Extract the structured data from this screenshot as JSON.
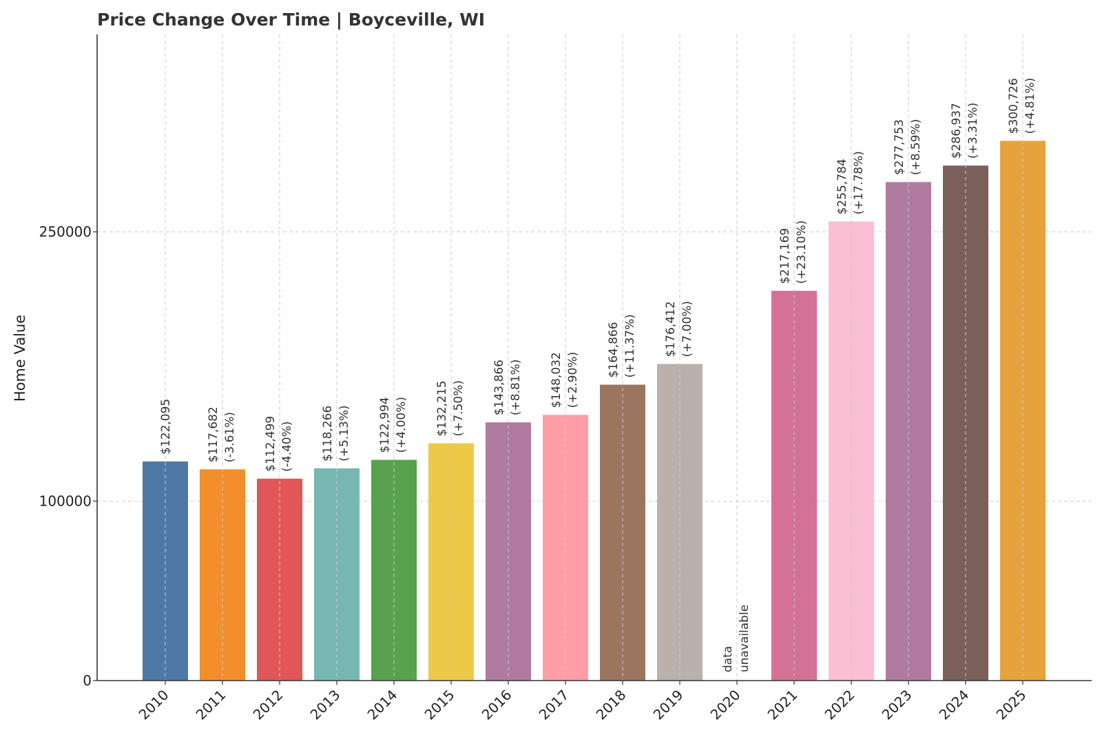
{
  "chart_data": {
    "type": "bar",
    "title": "Price Change Over Time | Boyceville, WI",
    "xlabel": "",
    "ylabel": "Home Value",
    "ylim": [
      0,
      360000
    ],
    "yticks": [
      0,
      100000,
      250000
    ],
    "ytick_labels": [
      "0",
      "100000",
      "250000"
    ],
    "grid": true,
    "categories": [
      "2010",
      "2011",
      "2012",
      "2013",
      "2014",
      "2015",
      "2016",
      "2017",
      "2018",
      "2019",
      "2020",
      "2021",
      "2022",
      "2023",
      "2024",
      "2025"
    ],
    "values": [
      122095,
      117682,
      112499,
      118266,
      122994,
      132215,
      143866,
      148032,
      164866,
      176412,
      null,
      217169,
      255784,
      277753,
      286937,
      300726
    ],
    "value_labels": [
      "$122,095",
      "$117,682",
      "$112,499",
      "$118,266",
      "$122,994",
      "$132,215",
      "$143,866",
      "$148,032",
      "$164,866",
      "$176,412",
      "",
      "$217,169",
      "$255,784",
      "$277,753",
      "$286,937",
      "$300,726"
    ],
    "change_labels": [
      "",
      "(-3.61%)",
      "(-4.40%)",
      "(+5.13%)",
      "(+4.00%)",
      "(+7.50%)",
      "(+8.81%)",
      "(+2.90%)",
      "(+11.37%)",
      "(+7.00%)",
      "",
      "(+23.10%)",
      "(+17.78%)",
      "(+8.59%)",
      "(+3.31%)",
      "(+4.81%)"
    ],
    "missing_label": [
      "data",
      "unavailable"
    ],
    "colors": [
      "#4e79a7",
      "#f28e2b",
      "#e15759",
      "#76b7b2",
      "#59a14f",
      "#edc948",
      "#b07aa1",
      "#ff9da7",
      "#9c755f",
      "#bab0ac",
      "#ffffff",
      "#d37295",
      "#fabfd2",
      "#b07aa1",
      "#7a5f5a",
      "#e6a23c"
    ]
  }
}
